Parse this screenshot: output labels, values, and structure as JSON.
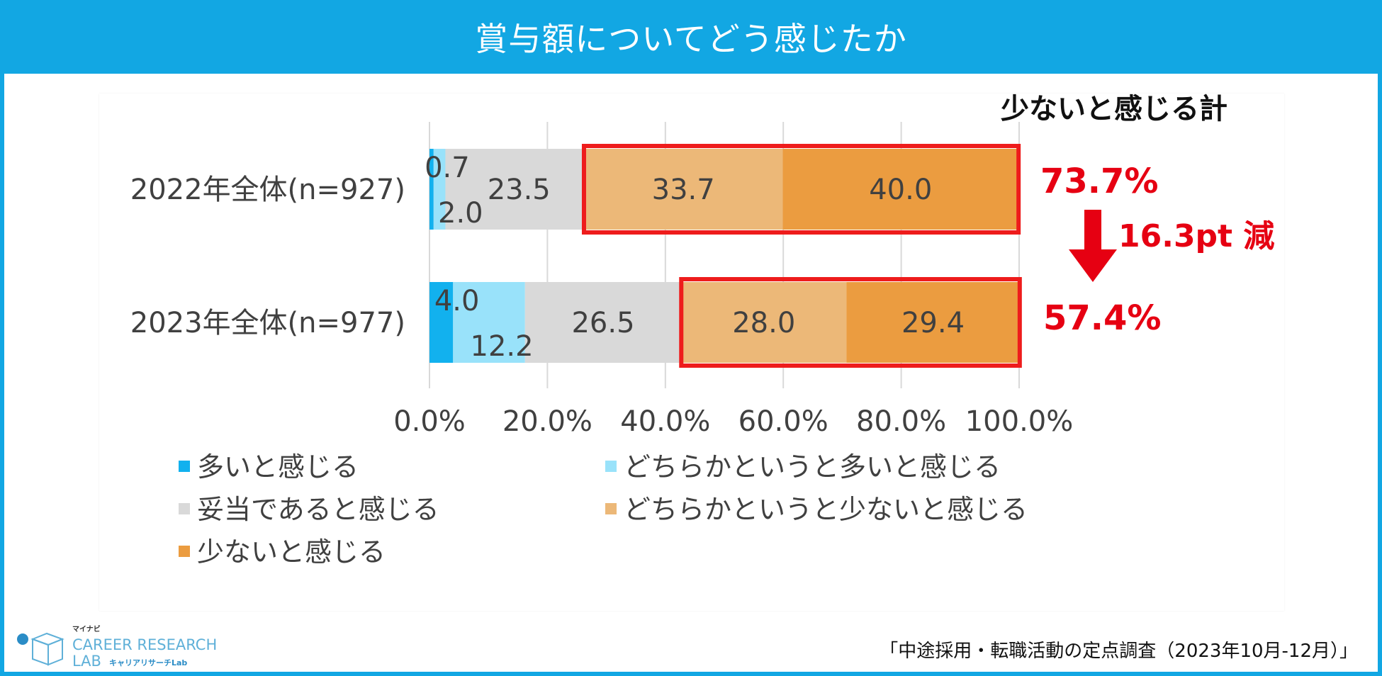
{
  "header": {
    "title": "賞与額についてどう感じたか"
  },
  "chart_data": {
    "type": "bar",
    "orientation": "horizontal",
    "stacked": true,
    "categories": [
      "2022年全体(n=927)",
      "2023年全体(n=977)"
    ],
    "series": [
      {
        "name": "多いと感じる",
        "color": "#12b1ee",
        "values": [
          0.7,
          4.0
        ]
      },
      {
        "name": "どちらかというと多いと感じる",
        "color": "#99e2fa",
        "values": [
          2.0,
          12.2
        ]
      },
      {
        "name": "妥当であると感じる",
        "color": "#d9d9d9",
        "values": [
          23.5,
          26.5
        ]
      },
      {
        "name": "どちらかというと少ないと感じる",
        "color": "#ecb878",
        "values": [
          33.7,
          28.0
        ]
      },
      {
        "name": "少ないと感じる",
        "color": "#eb9c40",
        "values": [
          40.0,
          29.4
        ]
      }
    ],
    "value_labels": [
      [
        "0.7",
        "2.0",
        "23.5",
        "33.7",
        "40.0"
      ],
      [
        "4.0",
        "12.2",
        "26.5",
        "28.0",
        "29.4"
      ]
    ],
    "xlim": [
      0,
      100
    ],
    "x_ticks": [
      0,
      20,
      40,
      60,
      80,
      100
    ],
    "x_tick_labels": [
      "0.0%",
      "20.0%",
      "40.0%",
      "60.0%",
      "80.0%",
      "100.0%"
    ],
    "grid": true,
    "legend_position": "bottom-left",
    "highlight_color": "#ee1c1c",
    "annotation_color": "#e60012"
  },
  "annotations": {
    "total_title": "少ないと感じる計",
    "totals": [
      "73.7%",
      "57.4%"
    ],
    "diff": "16.3pt 減"
  },
  "footer": {
    "source": "「中途採用・転職活動の定点調査（2023年10月-12月）」",
    "logo_brand": "マイナビ",
    "logo_line1": "CAREER RESEARCH",
    "logo_line2": "LAB",
    "logo_sub": "キャリアリサーチLab"
  }
}
